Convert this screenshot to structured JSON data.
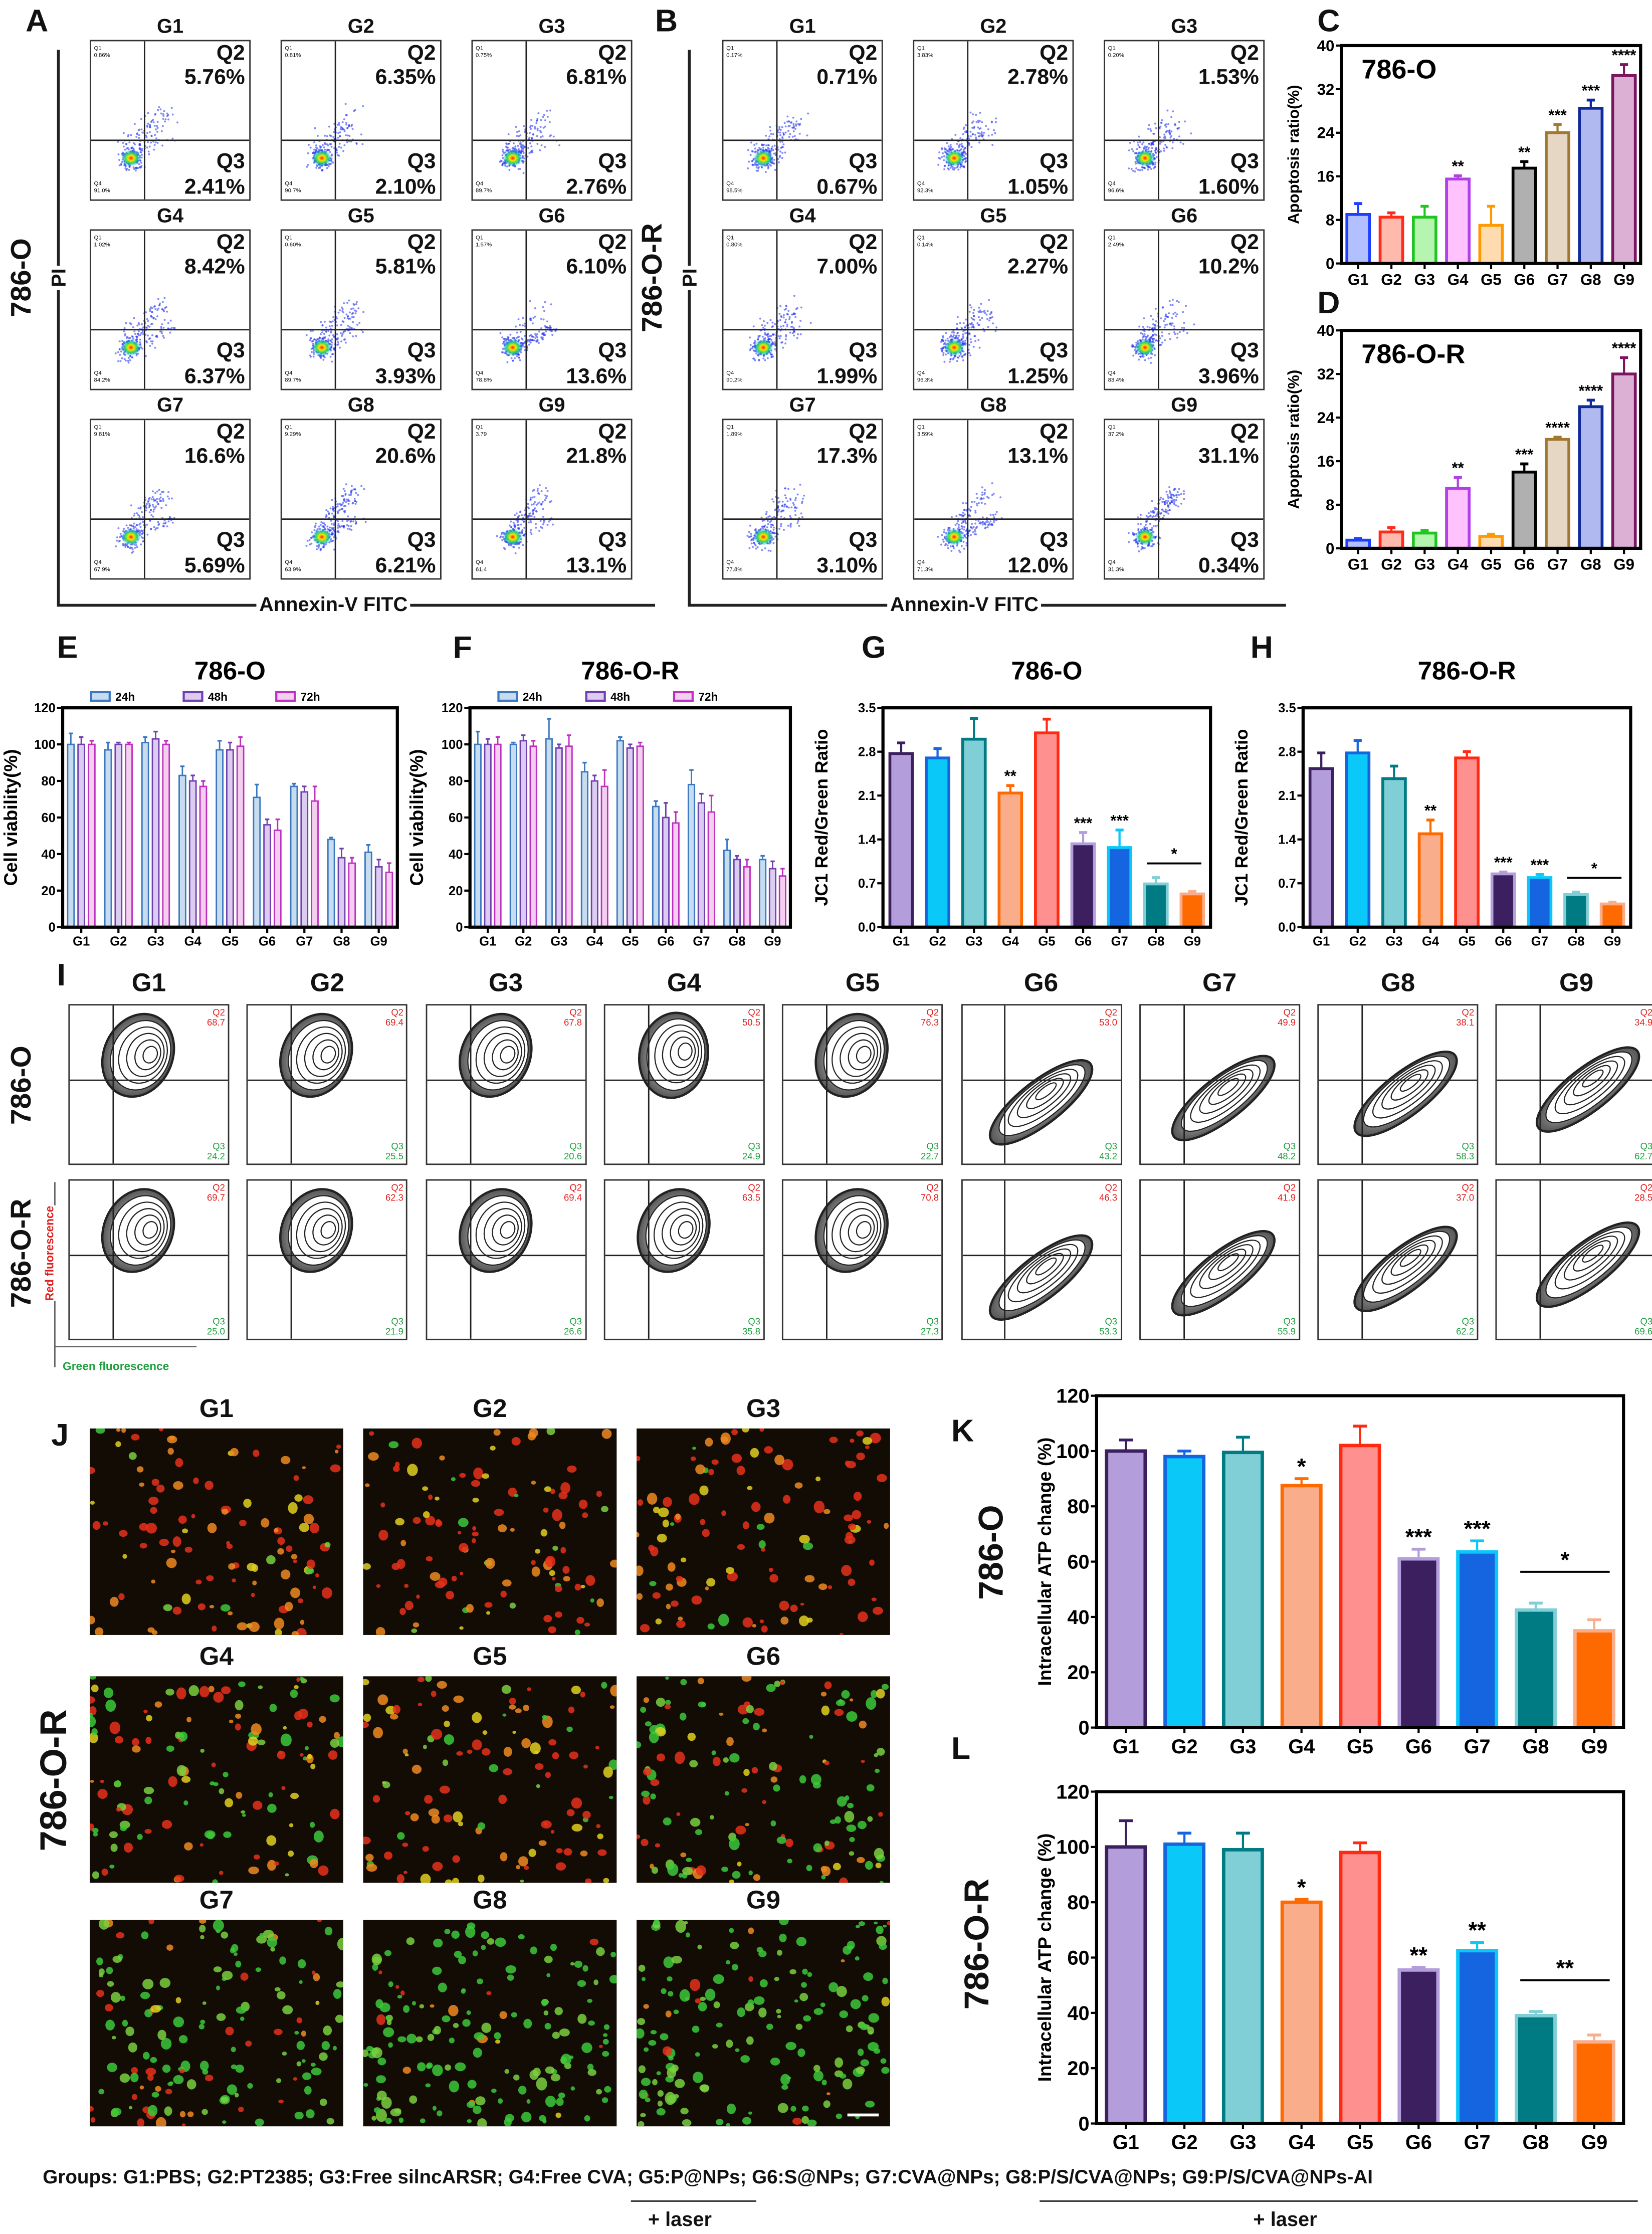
{
  "panel_labels": {
    "A": "A",
    "B": "B",
    "C": "C",
    "D": "D",
    "E": "E",
    "F": "F",
    "G": "G",
    "H": "H",
    "I": "I",
    "J": "J",
    "K": "K",
    "L": "L"
  },
  "flow_a": {
    "cell_line": "786-O",
    "y_axis": "PI",
    "x_axis": "Annexin-V FITC",
    "plots": [
      {
        "group": "G1",
        "q1": "Q1",
        "q1_value": "0.86%",
        "q2": "Q2",
        "q2_value": "5.76%",
        "q3": "Q3",
        "q3_value": "2.41%",
        "q4": "Q4",
        "q4_value": "91.0%"
      },
      {
        "group": "G2",
        "q1": "Q1",
        "q1_value": "0.81%",
        "q2": "Q2",
        "q2_value": "6.35%",
        "q3": "Q3",
        "q3_value": "2.10%",
        "q4": "Q4",
        "q4_value": "90.7%"
      },
      {
        "group": "G3",
        "q1": "Q1",
        "q1_value": "0.75%",
        "q2": "Q2",
        "q2_value": "6.81%",
        "q3": "Q3",
        "q3_value": "2.76%",
        "q4": "Q4",
        "q4_value": "89.7%"
      },
      {
        "group": "G4",
        "q1": "Q1",
        "q1_value": "1.02%",
        "q2": "Q2",
        "q2_value": "8.42%",
        "q3": "Q3",
        "q3_value": "6.37%",
        "q4": "Q4",
        "q4_value": "84.2%"
      },
      {
        "group": "G5",
        "q1": "Q1",
        "q1_value": "0.60%",
        "q2": "Q2",
        "q2_value": "5.81%",
        "q3": "Q3",
        "q3_value": "3.93%",
        "q4": "Q4",
        "q4_value": "89.7%"
      },
      {
        "group": "G6",
        "q1": "Q1",
        "q1_value": "1.57%",
        "q2": "Q2",
        "q2_value": "6.10%",
        "q3": "Q3",
        "q3_value": "13.6%",
        "q4": "Q4",
        "q4_value": "78.8%"
      },
      {
        "group": "G7",
        "q1": "Q1",
        "q1_value": "9.81%",
        "q2": "Q2",
        "q2_value": "16.6%",
        "q3": "Q3",
        "q3_value": "5.69%",
        "q4": "Q4",
        "q4_value": "67.9%"
      },
      {
        "group": "G8",
        "q1": "Q1",
        "q1_value": "9.29%",
        "q2": "Q2",
        "q2_value": "20.6%",
        "q3": "Q3",
        "q3_value": "6.21%",
        "q4": "Q4",
        "q4_value": "63.9%"
      },
      {
        "group": "G9",
        "q1": "Q1",
        "q1_value": "3.79",
        "q2": "Q2",
        "q2_value": "21.8%",
        "q3": "Q3",
        "q3_value": "13.1%",
        "q4": "Q4",
        "q4_value": "61.4"
      }
    ]
  },
  "flow_b": {
    "cell_line": "786-O-R",
    "y_axis": "PI",
    "x_axis": "Annexin-V FITC",
    "plots": [
      {
        "group": "G1",
        "q1": "Q1",
        "q1_value": "0.17%",
        "q2": "Q2",
        "q2_value": "0.71%",
        "q3": "Q3",
        "q3_value": "0.67%",
        "q4": "Q4",
        "q4_value": "98.5%"
      },
      {
        "group": "G2",
        "q1": "Q1",
        "q1_value": "3.83%",
        "q2": "Q2",
        "q2_value": "2.78%",
        "q3": "Q3",
        "q3_value": "1.05%",
        "q4": "Q4",
        "q4_value": "92.3%"
      },
      {
        "group": "G3",
        "q1": "Q1",
        "q1_value": "0.20%",
        "q2": "Q2",
        "q2_value": "1.53%",
        "q3": "Q3",
        "q3_value": "1.60%",
        "q4": "Q4",
        "q4_value": "96.6%"
      },
      {
        "group": "G4",
        "q1": "Q1",
        "q1_value": "0.80%",
        "q2": "Q2",
        "q2_value": "7.00%",
        "q3": "Q3",
        "q3_value": "1.99%",
        "q4": "Q4",
        "q4_value": "90.2%"
      },
      {
        "group": "G5",
        "q1": "Q1",
        "q1_value": "0.14%",
        "q2": "Q2",
        "q2_value": "2.27%",
        "q3": "Q3",
        "q3_value": "1.25%",
        "q4": "Q4",
        "q4_value": "96.3%"
      },
      {
        "group": "G6",
        "q1": "Q1",
        "q1_value": "2.49%",
        "q2": "Q2",
        "q2_value": "10.2%",
        "q3": "Q3",
        "q3_value": "3.96%",
        "q4": "Q4",
        "q4_value": "83.4%"
      },
      {
        "group": "G7",
        "q1": "Q1",
        "q1_value": "1.89%",
        "q2": "Q2",
        "q2_value": "17.3%",
        "q3": "Q3",
        "q3_value": "3.10%",
        "q4": "Q4",
        "q4_value": "77.8%"
      },
      {
        "group": "G8",
        "q1": "Q1",
        "q1_value": "3.59%",
        "q2": "Q2",
        "q2_value": "13.1%",
        "q3": "Q3",
        "q3_value": "12.0%",
        "q4": "Q4",
        "q4_value": "71.3%"
      },
      {
        "group": "G9",
        "q1": "Q1",
        "q1_value": "37.2%",
        "q2": "Q2",
        "q2_value": "31.1%",
        "q3": "Q3",
        "q3_value": "0.34%",
        "q4": "Q4",
        "q4_value": "31.3%"
      }
    ]
  },
  "jc1_flow": {
    "groups": [
      "G1",
      "G2",
      "G3",
      "G4",
      "G5",
      "G6",
      "G7",
      "G8",
      "G9"
    ],
    "row_labels": [
      "786-O",
      "786-O-R"
    ],
    "y_axis": "Red fluorescence",
    "x_axis": "Green fluorescence",
    "q2_label": "Q2",
    "q3_label": "Q3",
    "q2_color": "#e02020",
    "q3_color": "#20a040",
    "rows": [
      [
        {
          "q2": "68.7",
          "q3": "24.2"
        },
        {
          "q2": "69.4",
          "q3": "25.5"
        },
        {
          "q2": "67.8",
          "q3": "20.6"
        },
        {
          "q2": "50.5",
          "q3": "24.9"
        },
        {
          "q2": "76.3",
          "q3": "22.7"
        },
        {
          "q2": "53.0",
          "q3": "43.2"
        },
        {
          "q2": "49.9",
          "q3": "48.2"
        },
        {
          "q2": "38.1",
          "q3": "58.3"
        },
        {
          "q2": "34.9",
          "q3": "62.7"
        }
      ],
      [
        {
          "q2": "69.7",
          "q3": "25.0"
        },
        {
          "q2": "62.3",
          "q3": "21.9"
        },
        {
          "q2": "69.4",
          "q3": "26.6"
        },
        {
          "q2": "63.5",
          "q3": "35.8"
        },
        {
          "q2": "70.8",
          "q3": "27.3"
        },
        {
          "q2": "46.3",
          "q3": "53.3"
        },
        {
          "q2": "41.9",
          "q3": "55.9"
        },
        {
          "q2": "37.0",
          "q3": "62.2"
        },
        {
          "q2": "28.5",
          "q3": "69.6"
        }
      ]
    ]
  },
  "fluorescence": {
    "cell_line": "786-O-R",
    "groups": [
      "G1",
      "G2",
      "G3",
      "G4",
      "G5",
      "G6",
      "G7",
      "G8",
      "G9"
    ]
  },
  "footer": {
    "groups_text": "Groups: G1:PBS; G2:PT2385; G3:Free silncARSR; G4:Free CVA; G5:P@NPs; G6:S@NPs;  G7:CVA@NPs; G8:P/S/CVA@NPs; G9:P/S/CVA@NPs-AI",
    "laser_1": "+ laser",
    "laser_2": "+ laser"
  },
  "chart_data": [
    {
      "panel": "C",
      "type": "bar",
      "title": "786-O",
      "ylabel": "Apoptosis ratio(%)",
      "ylim": [
        0,
        40
      ],
      "yticks": [
        "0",
        "8",
        "16",
        "24",
        "32",
        "40"
      ],
      "categories": [
        "G1",
        "G2",
        "G3",
        "G4",
        "G5",
        "G6",
        "G7",
        "G8",
        "G9"
      ],
      "values": [
        9,
        8.5,
        8.5,
        15.5,
        7,
        17.5,
        24,
        28.5,
        34.5
      ],
      "errors": [
        2,
        0.8,
        2,
        0.6,
        3.5,
        1.2,
        1.5,
        1.5,
        2
      ],
      "significance": [
        "",
        "",
        "",
        "**",
        "",
        "**",
        "***",
        "***",
        "****"
      ],
      "stroke": [
        "#1f3fff",
        "#ff2a1a",
        "#22c422",
        "#b040e6",
        "#ff9900",
        "#000000",
        "#a07830",
        "#102a9a",
        "#7a1560"
      ],
      "fill": [
        "#b3c0ff",
        "#ffb9ad",
        "#b5f5b0",
        "#ffc2ff",
        "#ffdcb0",
        "#b0b0b0",
        "#e6d6c4",
        "#b0baf0",
        "#dcb0d4"
      ]
    },
    {
      "panel": "D",
      "type": "bar",
      "title": "786-O-R",
      "ylabel": "Apoptosis ratio(%)",
      "ylim": [
        0,
        40
      ],
      "yticks": [
        "0",
        "8",
        "16",
        "24",
        "32",
        "40"
      ],
      "categories": [
        "G1",
        "G2",
        "G3",
        "G4",
        "G5",
        "G6",
        "G7",
        "G8",
        "G9"
      ],
      "values": [
        1.5,
        3,
        2.8,
        11,
        2.2,
        14,
        20,
        26,
        32
      ],
      "errors": [
        0.3,
        0.8,
        0.5,
        2,
        0.4,
        1.5,
        0.4,
        1.2,
        3
      ],
      "significance": [
        "",
        "",
        "",
        "**",
        "",
        "***",
        "****",
        "****",
        "****"
      ],
      "stroke": [
        "#1f3fff",
        "#ff2a1a",
        "#22c422",
        "#b040e6",
        "#ff9900",
        "#000000",
        "#a07830",
        "#102a9a",
        "#7a1560"
      ],
      "fill": [
        "#b3c0ff",
        "#ffb9ad",
        "#b5f5b0",
        "#ffc2ff",
        "#ffdcb0",
        "#b0b0b0",
        "#e6d6c4",
        "#b0baf0",
        "#dcb0d4"
      ]
    },
    {
      "panel": "E",
      "type": "bar",
      "title": "786-O",
      "ylabel": "Cell viability(%)",
      "ylim": [
        0,
        120
      ],
      "yticks": [
        "0",
        "20",
        "40",
        "60",
        "80",
        "100",
        "120"
      ],
      "categories": [
        "G1",
        "G2",
        "G3",
        "G4",
        "G5",
        "G6",
        "G7",
        "G8",
        "G9"
      ],
      "legend": "top",
      "series": [
        {
          "name": "24h",
          "color": "#3a78c0",
          "fill": "#c8dcf0",
          "values": [
            100,
            97,
            101,
            83,
            97,
            71,
            77,
            48,
            41
          ],
          "errors": [
            6,
            4,
            3,
            5,
            5,
            7,
            1.5,
            1,
            4
          ]
        },
        {
          "name": "48h",
          "color": "#7040b0",
          "fill": "#dccdf0",
          "values": [
            100,
            100,
            103,
            80,
            97,
            56,
            74,
            38,
            33
          ],
          "errors": [
            4,
            1,
            4,
            3,
            4,
            3,
            3,
            5,
            4
          ]
        },
        {
          "name": "72h",
          "color": "#c030c0",
          "fill": "#f4d0f0",
          "values": [
            100,
            100,
            100,
            77,
            99,
            53,
            69,
            35,
            30
          ],
          "errors": [
            2,
            1,
            2,
            3,
            5,
            6,
            8,
            3,
            5
          ]
        }
      ]
    },
    {
      "panel": "F",
      "type": "bar",
      "title": "786-O-R",
      "ylabel": "Cell viability(%)",
      "ylim": [
        0,
        120
      ],
      "yticks": [
        "0",
        "20",
        "40",
        "60",
        "80",
        "100",
        "120"
      ],
      "categories": [
        "G1",
        "G2",
        "G3",
        "G4",
        "G5",
        "G6",
        "G7",
        "G8",
        "G9"
      ],
      "legend": "top",
      "series": [
        {
          "name": "24h",
          "color": "#3a78c0",
          "fill": "#c8dcf0",
          "values": [
            100,
            100,
            103,
            85,
            102,
            66,
            78,
            42,
            37
          ],
          "errors": [
            7,
            1,
            11,
            5,
            2,
            3,
            8,
            6,
            2
          ]
        },
        {
          "name": "48h",
          "color": "#7040b0",
          "fill": "#dccdf0",
          "values": [
            100,
            102,
            98,
            80,
            98,
            60,
            68,
            37,
            32
          ],
          "errors": [
            3,
            3,
            2,
            3,
            2,
            8,
            5,
            2,
            4
          ]
        },
        {
          "name": "72h",
          "color": "#c030c0",
          "fill": "#f4d0f0",
          "values": [
            100,
            99,
            99,
            77,
            99,
            57,
            63,
            33,
            28
          ],
          "errors": [
            4,
            3,
            6,
            9,
            2,
            6,
            9,
            4,
            4
          ]
        }
      ]
    },
    {
      "panel": "G",
      "type": "bar",
      "title": "786-O",
      "ylabel": "JC1 Red/Green Ratio",
      "ylim": [
        0,
        3.5
      ],
      "yticks": [
        "0.0",
        "0.7",
        "1.4",
        "2.1",
        "2.8",
        "3.5"
      ],
      "categories": [
        "G1",
        "G2",
        "G3",
        "G4",
        "G5",
        "G6",
        "G7",
        "G8",
        "G9"
      ],
      "values": [
        2.77,
        2.7,
        3.0,
        2.14,
        3.1,
        1.33,
        1.27,
        0.69,
        0.53
      ],
      "errors": [
        0.17,
        0.15,
        0.33,
        0.12,
        0.22,
        0.18,
        0.28,
        0.1,
        0.04
      ],
      "significance": [
        "",
        "",
        "",
        "**",
        "",
        "***",
        "***",
        "",
        ""
      ],
      "bracket": {
        "from": "G8",
        "to": "G9",
        "label": "*"
      },
      "stroke": [
        "#3b1f5e",
        "#1565e0",
        "#007b83",
        "#ff6a00",
        "#ff2a10",
        "#b39ddb",
        "#0ac8f8",
        "#80ced6",
        "#f9ad8a"
      ],
      "fill": [
        "#b39ddb",
        "#0ac8f8",
        "#80ced6",
        "#f9ad8a",
        "#ff9090",
        "#3b1f5e",
        "#1565e0",
        "#007b83",
        "#ff6a00"
      ]
    },
    {
      "panel": "H",
      "type": "bar",
      "title": "786-O-R",
      "ylabel": "JC1 Red/Green Ratio",
      "ylim": [
        0,
        3.5
      ],
      "yticks": [
        "0.0",
        "0.7",
        "1.4",
        "2.1",
        "2.8",
        "3.5"
      ],
      "categories": [
        "G1",
        "G2",
        "G3",
        "G4",
        "G5",
        "G6",
        "G7",
        "G8",
        "G9"
      ],
      "values": [
        2.53,
        2.78,
        2.37,
        1.49,
        2.7,
        0.85,
        0.79,
        0.52,
        0.37
      ],
      "errors": [
        0.25,
        0.2,
        0.2,
        0.22,
        0.1,
        0.03,
        0.05,
        0.04,
        0.03
      ],
      "significance": [
        "",
        "",
        "",
        "**",
        "",
        "***",
        "***",
        "",
        ""
      ],
      "bracket": {
        "from": "G8",
        "to": "G9",
        "label": "*"
      },
      "stroke": [
        "#3b1f5e",
        "#1565e0",
        "#007b83",
        "#ff6a00",
        "#ff2a10",
        "#b39ddb",
        "#0ac8f8",
        "#80ced6",
        "#f9ad8a"
      ],
      "fill": [
        "#b39ddb",
        "#0ac8f8",
        "#80ced6",
        "#f9ad8a",
        "#ff9090",
        "#3b1f5e",
        "#1565e0",
        "#007b83",
        "#ff6a00"
      ]
    },
    {
      "panel": "K",
      "type": "bar",
      "side_label": "786-O",
      "ylabel": "Intracellular  ATP change (%)",
      "ylim": [
        0,
        120
      ],
      "yticks": [
        "0",
        "20",
        "40",
        "60",
        "80",
        "100",
        "120"
      ],
      "categories": [
        "G1",
        "G2",
        "G3",
        "G4",
        "G5",
        "G6",
        "G7",
        "G8",
        "G9"
      ],
      "values": [
        100,
        98,
        99.5,
        87.5,
        102,
        61,
        63.5,
        42.5,
        35
      ],
      "errors": [
        4,
        2,
        5.5,
        2.5,
        7,
        3.5,
        4,
        2.5,
        4
      ],
      "significance": [
        "",
        "",
        "",
        "*",
        "",
        "***",
        "***",
        "",
        ""
      ],
      "bracket": {
        "from": "G8",
        "to": "G9",
        "label": "*"
      },
      "stroke": [
        "#3b1f5e",
        "#1565e0",
        "#007b83",
        "#ff6a00",
        "#ff2a10",
        "#b39ddb",
        "#0ac8f8",
        "#80ced6",
        "#f9ad8a"
      ],
      "fill": [
        "#b39ddb",
        "#0ac8f8",
        "#80ced6",
        "#f9ad8a",
        "#ff9090",
        "#3b1f5e",
        "#1565e0",
        "#007b83",
        "#ff6a00"
      ]
    },
    {
      "panel": "L",
      "type": "bar",
      "side_label": "786-O-R",
      "ylabel": "Intracellular  ATP change (%)",
      "ylim": [
        0,
        120
      ],
      "yticks": [
        "0",
        "20",
        "40",
        "60",
        "80",
        "100",
        "120"
      ],
      "categories": [
        "G1",
        "G2",
        "G3",
        "G4",
        "G5",
        "G6",
        "G7",
        "G8",
        "G9"
      ],
      "values": [
        100,
        101,
        99,
        80,
        98,
        55.5,
        62.5,
        39,
        29.5
      ],
      "errors": [
        9.5,
        4,
        6,
        1,
        3.5,
        1,
        3,
        1.5,
        2.5
      ],
      "significance": [
        "",
        "",
        "",
        "*",
        "",
        "**",
        "**",
        "",
        ""
      ],
      "bracket": {
        "from": "G8",
        "to": "G9",
        "label": "**"
      },
      "stroke": [
        "#3b1f5e",
        "#1565e0",
        "#007b83",
        "#ff6a00",
        "#ff2a10",
        "#b39ddb",
        "#0ac8f8",
        "#80ced6",
        "#f9ad8a"
      ],
      "fill": [
        "#b39ddb",
        "#0ac8f8",
        "#80ced6",
        "#f9ad8a",
        "#ff9090",
        "#3b1f5e",
        "#1565e0",
        "#007b83",
        "#ff6a00"
      ]
    }
  ]
}
